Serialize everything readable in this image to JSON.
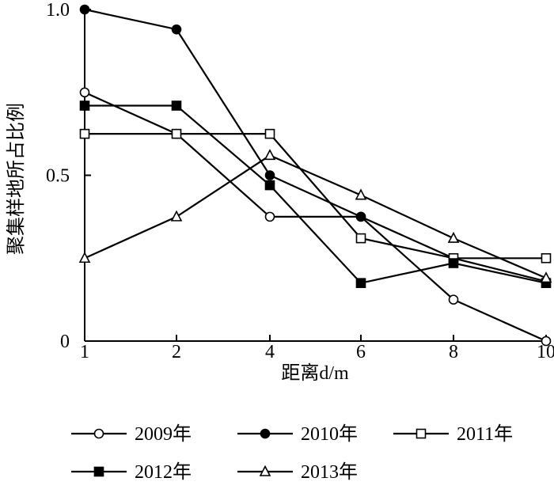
{
  "chart_data": {
    "type": "line",
    "categories": [
      "1",
      "2",
      "4",
      "6",
      "8",
      "10"
    ],
    "xlabel": "距离d/m",
    "ylabel": "聚集样地所占比例",
    "y_ticks": [
      "0",
      "0.5",
      "1.0"
    ],
    "ylim": [
      0,
      1.0
    ],
    "grid": false,
    "legend_position": "bottom",
    "series": [
      {
        "name": "2009年",
        "marker": "circle-open",
        "values": [
          0.75,
          0.625,
          0.375,
          0.375,
          0.125,
          0.0
        ]
      },
      {
        "name": "2010年",
        "marker": "circle-filled",
        "values": [
          1.0,
          0.94,
          0.5,
          0.375,
          0.25,
          0.18
        ]
      },
      {
        "name": "2011年",
        "marker": "square-open",
        "values": [
          0.625,
          0.625,
          0.625,
          0.31,
          0.25,
          0.25
        ]
      },
      {
        "name": "2012年",
        "marker": "square-filled",
        "values": [
          0.71,
          0.71,
          0.47,
          0.175,
          0.235,
          0.175
        ]
      },
      {
        "name": "2013年",
        "marker": "triangle-open",
        "values": [
          0.25,
          0.375,
          0.56,
          0.44,
          0.31,
          0.19
        ]
      }
    ]
  }
}
